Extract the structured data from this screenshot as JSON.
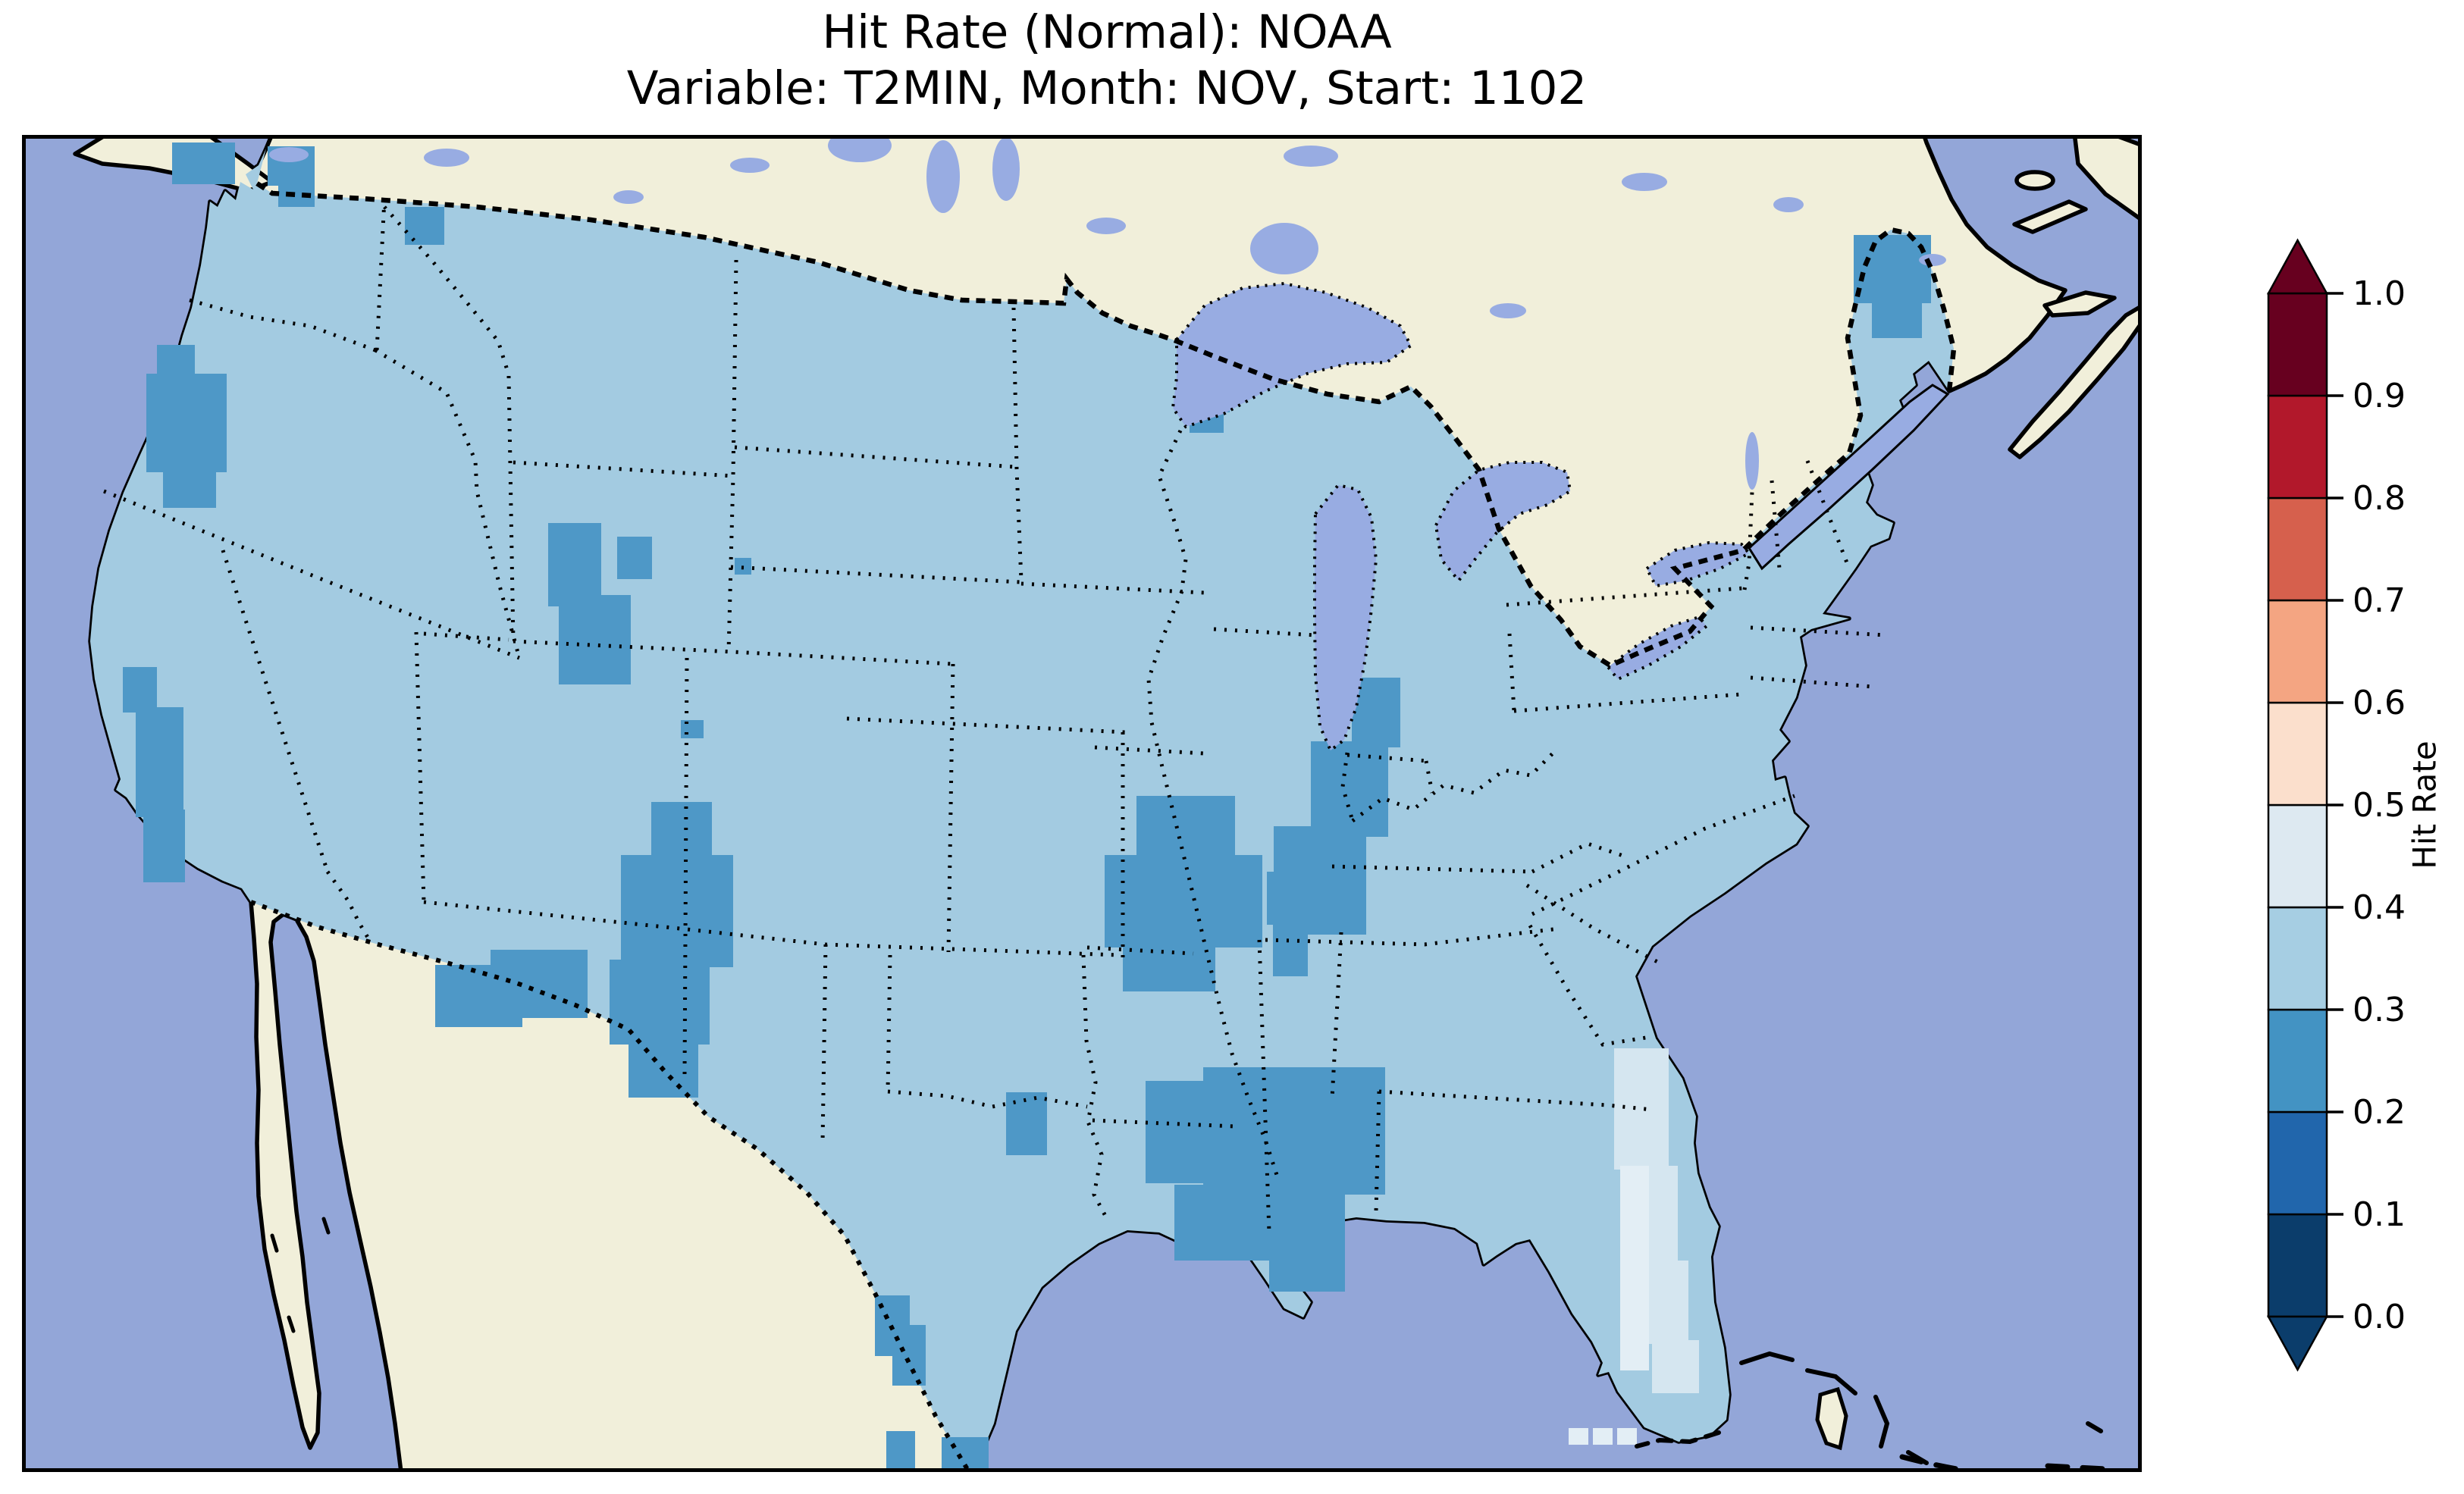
{
  "figure": {
    "title": "Hit Rate (Normal): NOAA",
    "subtitle": "Variable: T2MIN, Month: NOV, Start: 1102"
  },
  "colorbar": {
    "label": "Hit Rate",
    "tick_labels": [
      "0.0",
      "0.1",
      "0.2",
      "0.3",
      "0.4",
      "0.5",
      "0.6",
      "0.7",
      "0.8",
      "0.9",
      "1.0"
    ],
    "segments": [
      {
        "from": 0.0,
        "to": 0.1,
        "color": "#0b3d6b"
      },
      {
        "from": 0.1,
        "to": 0.2,
        "color": "#2166ac"
      },
      {
        "from": 0.2,
        "to": 0.3,
        "color": "#4393c3"
      },
      {
        "from": 0.3,
        "to": 0.4,
        "color": "#a6cee3"
      },
      {
        "from": 0.4,
        "to": 0.5,
        "color": "#dde9f1"
      },
      {
        "from": 0.5,
        "to": 0.6,
        "color": "#fbdfcc"
      },
      {
        "from": 0.6,
        "to": 0.7,
        "color": "#f4a582"
      },
      {
        "from": 0.7,
        "to": 0.8,
        "color": "#d6604d"
      },
      {
        "from": 0.8,
        "to": 0.9,
        "color": "#b2182b"
      },
      {
        "from": 0.9,
        "to": 1.0,
        "color": "#67001f"
      }
    ],
    "extend": "both",
    "over_color": "#67001f",
    "under_color": "#0b3d6b"
  },
  "map": {
    "colors": {
      "ocean": "#93a6d8",
      "land": "#f1efda",
      "lakes": "#98ace2",
      "us_fill": "#a3cbe1",
      "coastline": "#000000",
      "borders": "#000000",
      "frame": "#000000"
    }
  },
  "chart_data": {
    "type": "heatmap",
    "title": "Hit Rate (Normal): NOAA",
    "subtitle": "Variable: T2MIN, Month: NOV, Start: 1102",
    "source": "NOAA",
    "metric": "Hit Rate (Normal)",
    "variable": "T2MIN",
    "month": "NOV",
    "start": "1102",
    "region": "Contiguous United States",
    "value_range": [
      0.0,
      1.0
    ],
    "bin_width": 0.1,
    "colormap": "RdBu_r (discrete, 10 bins, extended both ends)",
    "dominant_bin": "0.3-0.4",
    "field_summary": "Most of CONUS falls in the 0.3-0.4 hit-rate bin; scattered mountain/valley clusters fall in 0.2-0.3; the eastern Florida peninsula is 0.4-0.5.",
    "patches": [
      {
        "name": "north-cascades-wa",
        "bin": "0.2-0.3",
        "color": "#4e98c7",
        "rects": [
          [
            198,
            10,
            83,
            55
          ]
        ]
      },
      {
        "name": "okanogan-wa",
        "bin": "0.2-0.3",
        "color": "#4e98c7",
        "rects": [
          [
            324,
            15,
            62,
            52
          ],
          [
            338,
            55,
            48,
            40
          ]
        ]
      },
      {
        "name": "idaho-montana-border",
        "bin": "0.2-0.3",
        "color": "#4e98c7",
        "rects": [
          [
            505,
            95,
            52,
            50
          ]
        ]
      },
      {
        "name": "oregon-cascades",
        "bin": "0.2-0.3",
        "color": "#4e98c7",
        "rects": [
          [
            178,
            277,
            50,
            45
          ],
          [
            164,
            315,
            106,
            130
          ],
          [
            186,
            430,
            70,
            62
          ]
        ]
      },
      {
        "name": "sierra-nevada-ca",
        "bin": "0.2-0.3",
        "color": "#4e98c7",
        "rects": [
          [
            133,
            702,
            45,
            60
          ],
          [
            150,
            755,
            63,
            145
          ],
          [
            160,
            890,
            55,
            96
          ]
        ]
      },
      {
        "name": "bighorn-wyoming",
        "bin": "0.2-0.3",
        "color": "#4e98c7",
        "rects": [
          [
            694,
            512,
            70,
            110
          ],
          [
            785,
            530,
            46,
            56
          ],
          [
            708,
            607,
            95,
            118
          ],
          [
            869,
            772,
            30,
            24
          ]
        ]
      },
      {
        "name": "wyoming-east-cell",
        "bin": "0.2-0.3",
        "color": "#4e98c7",
        "rects": [
          [
            940,
            558,
            22,
            22
          ]
        ]
      },
      {
        "name": "utah-colorado-rockies",
        "bin": "0.2-0.3",
        "color": "#4e98c7",
        "rects": [
          [
            830,
            880,
            80,
            80
          ],
          [
            790,
            950,
            148,
            148
          ],
          [
            775,
            1088,
            132,
            112
          ],
          [
            800,
            1190,
            92,
            80
          ]
        ]
      },
      {
        "name": "az-nm-bootheel",
        "bin": "0.2-0.3",
        "color": "#4e98c7",
        "rects": [
          [
            545,
            1095,
            115,
            82
          ],
          [
            618,
            1075,
            128,
            90
          ]
        ]
      },
      {
        "name": "red-river-tx-ok",
        "bin": "0.2-0.3",
        "color": "#4e98c7",
        "rects": [
          [
            1298,
            1263,
            54,
            83
          ]
        ]
      },
      {
        "name": "south-texas-rio-grande",
        "bin": "0.2-0.3",
        "color": "#4e98c7",
        "rects": [
          [
            1125,
            1531,
            46,
            80
          ],
          [
            1148,
            1570,
            44,
            80
          ]
        ]
      },
      {
        "name": "brownsville-cells",
        "bin": "0.2-0.3",
        "color": "#4e98c7",
        "rects": [
          [
            1213,
            1718,
            62,
            46
          ],
          [
            1140,
            1710,
            38,
            54
          ]
        ]
      },
      {
        "name": "ozarks-missouri",
        "bin": "0.2-0.3",
        "color": "#4e98c7",
        "rects": [
          [
            1470,
            872,
            130,
            85
          ],
          [
            1428,
            950,
            208,
            122
          ],
          [
            1452,
            1062,
            122,
            68
          ]
        ]
      },
      {
        "name": "illinois-indiana",
        "bin": "0.2-0.3",
        "color": "#4e98c7",
        "rects": [
          [
            1754,
            716,
            64,
            92
          ],
          [
            1700,
            800,
            102,
            126
          ],
          [
            1651,
            912,
            122,
            143
          ]
        ]
      },
      {
        "name": "west-tennessee",
        "bin": "0.2-0.3",
        "color": "#4e98c7",
        "rects": [
          [
            1642,
            972,
            54,
            70
          ],
          [
            1650,
            1040,
            46,
            70
          ]
        ]
      },
      {
        "name": "louisiana-mississippi",
        "bin": "0.2-0.3",
        "color": "#4e98c7",
        "rects": [
          [
            1482,
            1248,
            170,
            135
          ],
          [
            1558,
            1230,
            240,
            168
          ],
          [
            1520,
            1385,
            225,
            100
          ],
          [
            1645,
            1478,
            100,
            48
          ]
        ]
      },
      {
        "name": "northern-maine",
        "bin": "0.2-0.3",
        "color": "#4e98c7",
        "rects": [
          [
            2416,
            132,
            102,
            90
          ],
          [
            2440,
            218,
            66,
            50
          ]
        ]
      },
      {
        "name": "minnesota-border",
        "bin": "0.2-0.3",
        "color": "#4e98c7",
        "rects": [
          [
            1523,
            308,
            70,
            58
          ],
          [
            1540,
            355,
            45,
            38
          ]
        ]
      },
      {
        "name": "florida-peninsula-east",
        "bin": "0.4-0.5",
        "color": "#d5e6f0",
        "rects": [
          [
            2100,
            1205,
            72,
            160
          ],
          [
            2112,
            1360,
            72,
            130
          ],
          [
            2128,
            1485,
            70,
            110
          ],
          [
            2150,
            1590,
            62,
            70
          ]
        ]
      },
      {
        "name": "florida-east-coast-core",
        "bin": "0.4-0.5",
        "color": "#e3eef5",
        "rects": [
          [
            2108,
            1360,
            38,
            270
          ]
        ]
      },
      {
        "name": "florida-keys-offshore-cells",
        "bin": "0.4-0.5",
        "color": "#e3eef5",
        "rects": [
          [
            2040,
            1706,
            26,
            22
          ],
          [
            2072,
            1706,
            26,
            22
          ],
          [
            2104,
            1706,
            26,
            22
          ]
        ]
      }
    ]
  }
}
